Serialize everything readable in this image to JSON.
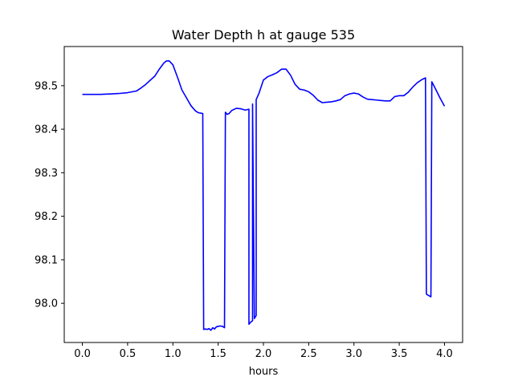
{
  "chart_data": {
    "type": "line",
    "title": "Water Depth h at gauge 535",
    "xlabel": "hours",
    "ylabel": "",
    "xlim": [
      -0.2,
      4.2
    ],
    "ylim": [
      97.91,
      98.59
    ],
    "xticks": [
      0.0,
      0.5,
      1.0,
      1.5,
      2.0,
      2.5,
      3.0,
      3.5,
      4.0
    ],
    "xtick_labels": [
      "0.0",
      "0.5",
      "1.0",
      "1.5",
      "2.0",
      "2.5",
      "3.0",
      "3.5",
      "4.0"
    ],
    "yticks": [
      98.0,
      98.1,
      98.2,
      98.3,
      98.4,
      98.5
    ],
    "ytick_labels": [
      "98.0",
      "98.1",
      "98.2",
      "98.3",
      "98.4",
      "98.5"
    ],
    "grid": false,
    "series": [
      {
        "color": "#0000ff",
        "x": [
          0.0,
          0.1,
          0.2,
          0.3,
          0.4,
          0.5,
          0.6,
          0.65,
          0.7,
          0.8,
          0.85,
          0.9,
          0.93,
          0.96,
          1.0,
          1.05,
          1.1,
          1.15,
          1.2,
          1.25,
          1.28,
          1.33,
          1.34,
          1.36,
          1.38,
          1.4,
          1.42,
          1.44,
          1.46,
          1.48,
          1.5,
          1.52,
          1.55,
          1.57,
          1.58,
          1.6,
          1.62,
          1.65,
          1.7,
          1.75,
          1.8,
          1.84,
          1.84,
          1.86,
          1.88,
          1.88,
          1.9,
          1.92,
          1.92,
          1.95,
          2.0,
          2.05,
          2.1,
          2.15,
          2.2,
          2.25,
          2.3,
          2.35,
          2.4,
          2.45,
          2.5,
          2.55,
          2.6,
          2.65,
          2.7,
          2.75,
          2.8,
          2.85,
          2.9,
          2.95,
          3.0,
          3.05,
          3.1,
          3.15,
          3.2,
          3.25,
          3.3,
          3.35,
          3.4,
          3.45,
          3.5,
          3.55,
          3.6,
          3.65,
          3.7,
          3.75,
          3.78,
          3.79,
          3.8,
          3.85,
          3.86,
          3.9,
          3.95,
          4.0
        ],
        "y": [
          98.48,
          98.48,
          98.48,
          98.481,
          98.482,
          98.484,
          98.488,
          98.495,
          98.503,
          98.522,
          98.538,
          98.552,
          98.557,
          98.557,
          98.548,
          98.52,
          98.49,
          98.472,
          98.454,
          98.442,
          98.438,
          98.436,
          97.94,
          97.941,
          97.94,
          97.942,
          97.938,
          97.944,
          97.941,
          97.946,
          97.947,
          97.948,
          97.947,
          97.944,
          98.439,
          98.434,
          98.436,
          98.443,
          98.448,
          98.447,
          98.444,
          98.446,
          97.952,
          97.957,
          97.96,
          98.458,
          97.965,
          97.972,
          98.468,
          98.482,
          98.513,
          98.521,
          98.525,
          98.53,
          98.538,
          98.538,
          98.524,
          98.503,
          98.492,
          98.49,
          98.486,
          98.478,
          98.467,
          98.461,
          98.462,
          98.463,
          98.465,
          98.468,
          98.477,
          98.481,
          98.483,
          98.481,
          98.474,
          98.469,
          98.468,
          98.467,
          98.466,
          98.465,
          98.465,
          98.475,
          98.477,
          98.477,
          98.485,
          98.497,
          98.507,
          98.514,
          98.517,
          98.518,
          98.021,
          98.015,
          98.509,
          98.493,
          98.472,
          98.453
        ]
      }
    ]
  }
}
